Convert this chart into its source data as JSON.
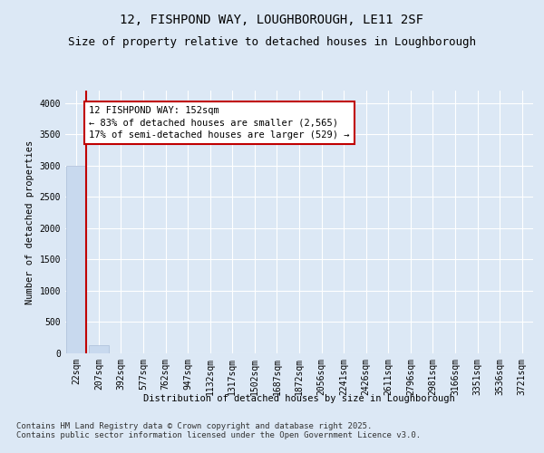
{
  "title": "12, FISHPOND WAY, LOUGHBOROUGH, LE11 2SF",
  "subtitle": "Size of property relative to detached houses in Loughborough",
  "xlabel": "Distribution of detached houses by size in Loughborough",
  "ylabel": "Number of detached properties",
  "footer_line1": "Contains HM Land Registry data © Crown copyright and database right 2025.",
  "footer_line2": "Contains public sector information licensed under the Open Government Licence v3.0.",
  "annotation_line1": "12 FISHPOND WAY: 152sqm",
  "annotation_line2": "← 83% of detached houses are smaller (2,565)",
  "annotation_line3": "17% of semi-detached houses are larger (529) →",
  "bar_labels": [
    "22sqm",
    "207sqm",
    "392sqm",
    "577sqm",
    "762sqm",
    "947sqm",
    "1132sqm",
    "1317sqm",
    "1502sqm",
    "1687sqm",
    "1872sqm",
    "2056sqm",
    "2241sqm",
    "2426sqm",
    "2611sqm",
    "2796sqm",
    "2981sqm",
    "3166sqm",
    "3351sqm",
    "3536sqm",
    "3721sqm"
  ],
  "bar_values": [
    3000,
    130,
    0,
    0,
    0,
    0,
    0,
    0,
    0,
    0,
    0,
    0,
    0,
    0,
    0,
    0,
    0,
    0,
    0,
    0,
    0
  ],
  "bar_color": "#c8d9ee",
  "bar_edge_color": "#aabdd8",
  "marker_line_color": "#c00000",
  "annotation_box_color": "#c00000",
  "ylim": [
    0,
    4200
  ],
  "yticks": [
    0,
    500,
    1000,
    1500,
    2000,
    2500,
    3000,
    3500,
    4000
  ],
  "bg_color": "#dce8f5",
  "plot_bg_color": "#dce8f5",
  "grid_color": "#ffffff",
  "title_fontsize": 10,
  "subtitle_fontsize": 9,
  "axis_label_fontsize": 7.5,
  "tick_fontsize": 7,
  "annotation_fontsize": 7.5,
  "footer_fontsize": 6.5
}
